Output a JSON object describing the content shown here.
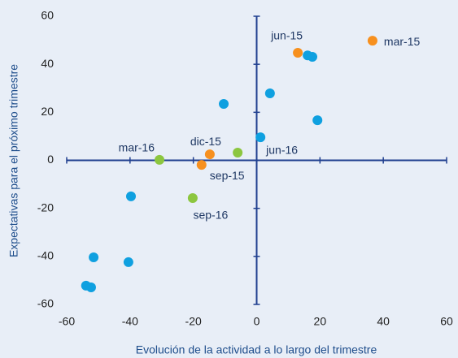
{
  "chart_data": {
    "type": "scatter",
    "x_label": "Evolución de la actividad a lo largo del trimestre",
    "y_label": "Expectativas para el próximo trimestre",
    "xlim": [
      -60,
      60
    ],
    "xticks": [
      -60,
      -40,
      -20,
      0,
      20,
      40,
      60
    ],
    "ylim": [
      -60,
      60
    ],
    "yticks": [
      -60,
      -40,
      -20,
      0,
      20,
      40,
      60
    ],
    "series": [
      {
        "color": "#0fa0e0",
        "x": [
          16.1,
          17.6,
          4.2,
          -10.4,
          19.2,
          1.2,
          -39.7,
          -51.5,
          -40.5,
          -53.9,
          -52.3
        ],
        "values": [
          43.7,
          43.1,
          27.9,
          23.5,
          16.7,
          9.6,
          -15,
          -40.4,
          -42.4,
          -52.2,
          -52.9
        ]
      },
      {
        "color": "#f7901e",
        "x": [
          36.6,
          13,
          -14.8,
          -17.4
        ],
        "values": [
          49.8,
          44.8,
          2.5,
          -1.9
        ],
        "labels": [
          "mar-15",
          "jun-15",
          "dic-15",
          "sep-15"
        ]
      },
      {
        "color": "#8cc63f",
        "x": [
          -30.7,
          -6,
          -20.2
        ],
        "values": [
          0.2,
          3.2,
          -15.7
        ],
        "labels": [
          "mar-16",
          "jun-16",
          "sep-16"
        ]
      }
    ]
  }
}
